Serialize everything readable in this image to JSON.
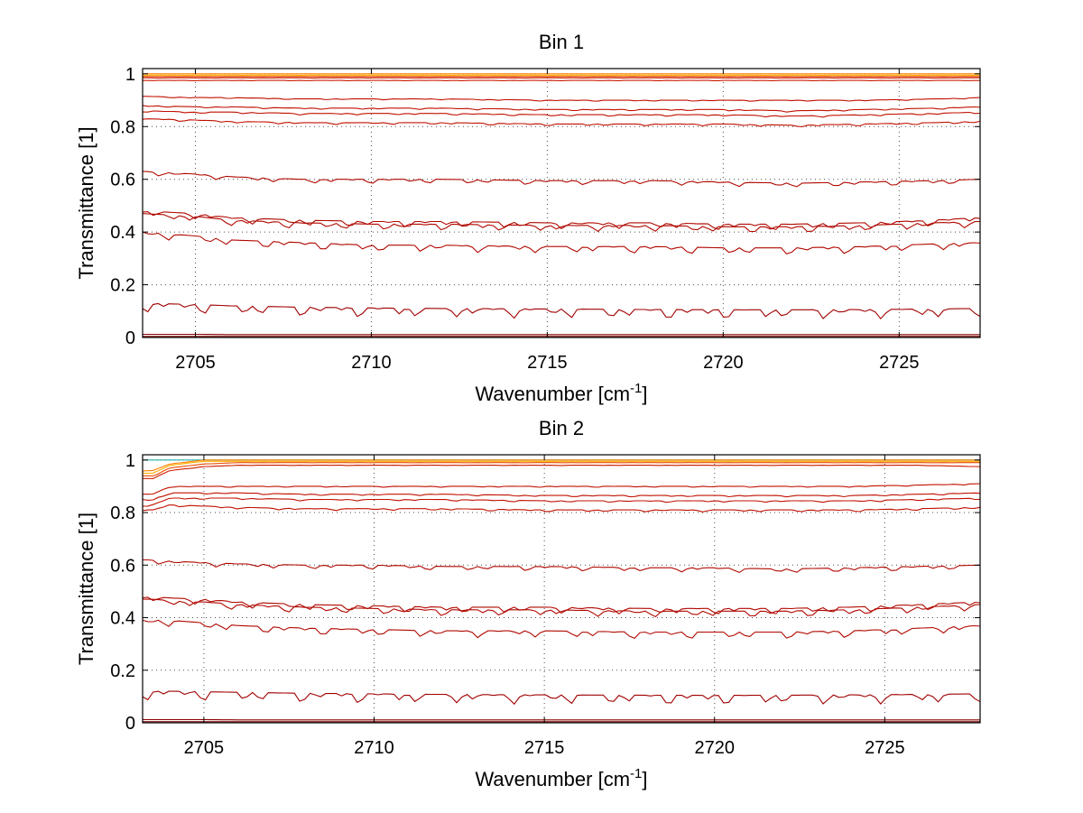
{
  "chart_data": [
    {
      "type": "line",
      "title": "Bin 1",
      "xlabel": "Wavenumber [cm",
      "xlabel_sup": "-1",
      "xlabel_tail": "]",
      "ylabel": "Transmittance [1]",
      "xlim": [
        2703.5,
        2727.3
      ],
      "ylim": [
        0,
        1.02
      ],
      "grid": true,
      "xticks": [
        2705,
        2710,
        2715,
        2720,
        2725
      ],
      "xtick_labels": [
        "2705",
        "2710",
        "2715",
        "2720",
        "2725"
      ],
      "yticks": [
        0,
        0.2,
        0.4,
        0.6,
        0.8,
        1
      ],
      "ytick_labels": [
        "0",
        "0.2",
        "0.4",
        "0.6",
        "0.8",
        "1"
      ],
      "x": [
        2703.5,
        2705,
        2706,
        2708,
        2710,
        2712,
        2715,
        2718,
        2720,
        2722,
        2724,
        2726,
        2727.3
      ],
      "series": [
        {
          "color": "#ff7f00",
          "values": [
            1.0,
            1.0,
            1.0,
            1.0,
            1.0,
            1.0,
            1.0,
            1.0,
            1.0,
            1.0,
            1.0,
            1.0,
            1.0
          ]
        },
        {
          "color": "#ffb000",
          "values": [
            0.995,
            0.995,
            0.995,
            0.995,
            0.995,
            0.995,
            0.995,
            0.995,
            0.995,
            0.995,
            0.995,
            0.995,
            0.995
          ]
        },
        {
          "color": "#e84a00",
          "values": [
            0.99,
            0.99,
            0.99,
            0.99,
            0.99,
            0.99,
            0.99,
            0.99,
            0.99,
            0.99,
            0.99,
            0.99,
            0.99
          ]
        },
        {
          "color": "#cc1a00",
          "values": [
            0.985,
            0.985,
            0.985,
            0.985,
            0.985,
            0.985,
            0.985,
            0.985,
            0.985,
            0.985,
            0.985,
            0.985,
            0.985
          ]
        },
        {
          "color": "#cc1a00",
          "values": [
            0.975,
            0.975,
            0.975,
            0.975,
            0.975,
            0.975,
            0.975,
            0.975,
            0.975,
            0.975,
            0.975,
            0.975,
            0.975
          ]
        },
        {
          "color": "#c01000",
          "values": [
            0.915,
            0.91,
            0.91,
            0.905,
            0.905,
            0.905,
            0.9,
            0.9,
            0.9,
            0.9,
            0.9,
            0.905,
            0.91
          ]
        },
        {
          "color": "#c01000",
          "values": [
            0.88,
            0.875,
            0.875,
            0.87,
            0.87,
            0.87,
            0.865,
            0.865,
            0.865,
            0.86,
            0.865,
            0.87,
            0.875
          ]
        },
        {
          "color": "#c01000",
          "values": [
            0.86,
            0.855,
            0.855,
            0.85,
            0.85,
            0.85,
            0.845,
            0.845,
            0.845,
            0.84,
            0.845,
            0.85,
            0.855
          ]
        },
        {
          "color": "#c01000",
          "values": [
            0.83,
            0.825,
            0.82,
            0.815,
            0.815,
            0.815,
            0.81,
            0.81,
            0.81,
            0.805,
            0.81,
            0.815,
            0.82
          ]
        },
        {
          "color": "#b00800",
          "values": [
            0.63,
            0.62,
            0.61,
            0.6,
            0.6,
            0.6,
            0.595,
            0.595,
            0.59,
            0.585,
            0.59,
            0.595,
            0.6
          ]
        },
        {
          "color": "#b00800",
          "values": [
            0.48,
            0.47,
            0.455,
            0.445,
            0.44,
            0.44,
            0.435,
            0.435,
            0.43,
            0.43,
            0.435,
            0.445,
            0.455
          ]
        },
        {
          "color": "#b00800",
          "values": [
            0.47,
            0.46,
            0.445,
            0.435,
            0.43,
            0.43,
            0.425,
            0.425,
            0.42,
            0.42,
            0.425,
            0.435,
            0.44
          ]
        },
        {
          "color": "#b00800",
          "values": [
            0.4,
            0.385,
            0.37,
            0.36,
            0.35,
            0.35,
            0.345,
            0.345,
            0.34,
            0.34,
            0.345,
            0.355,
            0.36
          ]
        },
        {
          "color": "#a00000",
          "values": [
            0.13,
            0.125,
            0.12,
            0.115,
            0.112,
            0.11,
            0.108,
            0.106,
            0.105,
            0.105,
            0.106,
            0.108,
            0.11
          ]
        },
        {
          "color": "#8b0000",
          "values": [
            0.012,
            0.012,
            0.011,
            0.011,
            0.011,
            0.011,
            0.011,
            0.011,
            0.011,
            0.011,
            0.011,
            0.011,
            0.011
          ]
        },
        {
          "color": "#7a0000",
          "values": [
            0.004,
            0.004,
            0.004,
            0.004,
            0.004,
            0.004,
            0.004,
            0.004,
            0.004,
            0.004,
            0.004,
            0.004,
            0.004
          ]
        }
      ]
    },
    {
      "type": "line",
      "title": "Bin 2",
      "xlabel": "Wavenumber [cm",
      "xlabel_sup": "-1",
      "xlabel_tail": "]",
      "ylabel": "Transmittance [1]",
      "xlim": [
        2703.2,
        2727.8
      ],
      "ylim": [
        0,
        1.02
      ],
      "grid": true,
      "xticks": [
        2705,
        2710,
        2715,
        2720,
        2725
      ],
      "xtick_labels": [
        "2705",
        "2710",
        "2715",
        "2720",
        "2725"
      ],
      "yticks": [
        0,
        0.2,
        0.4,
        0.6,
        0.8,
        1
      ],
      "ytick_labels": [
        "0",
        "0.2",
        "0.4",
        "0.6",
        "0.8",
        "1"
      ],
      "x": [
        2703.5,
        2704,
        2705,
        2706,
        2708,
        2710,
        2712,
        2715,
        2718,
        2720,
        2722,
        2724,
        2726,
        2727.8
      ],
      "series": [
        {
          "color": "#20b2aa",
          "values": [
            1.0,
            1.0,
            1.0,
            1.0,
            1.0,
            1.0,
            1.0,
            1.0,
            1.0,
            1.0,
            1.0,
            1.0,
            1.0,
            1.0
          ]
        },
        {
          "color": "#ff7f00",
          "values": [
            0.96,
            0.985,
            1.0,
            1.0,
            1.0,
            1.0,
            1.0,
            1.0,
            1.0,
            1.0,
            1.0,
            1.0,
            1.0,
            1.0
          ]
        },
        {
          "color": "#ffb000",
          "values": [
            0.95,
            0.98,
            0.995,
            0.995,
            0.995,
            0.995,
            0.995,
            0.995,
            0.995,
            0.995,
            0.995,
            0.995,
            0.995,
            0.995
          ]
        },
        {
          "color": "#e84a00",
          "values": [
            0.94,
            0.97,
            0.985,
            0.99,
            0.99,
            0.99,
            0.99,
            0.99,
            0.99,
            0.99,
            0.99,
            0.99,
            0.99,
            0.99
          ]
        },
        {
          "color": "#cc1a00",
          "values": [
            0.93,
            0.96,
            0.975,
            0.98,
            0.98,
            0.98,
            0.98,
            0.98,
            0.98,
            0.98,
            0.98,
            0.98,
            0.98,
            0.975
          ]
        },
        {
          "color": "#c01000",
          "values": [
            0.87,
            0.9,
            0.9,
            0.9,
            0.9,
            0.9,
            0.9,
            0.9,
            0.9,
            0.9,
            0.9,
            0.9,
            0.905,
            0.91
          ]
        },
        {
          "color": "#c01000",
          "values": [
            0.85,
            0.875,
            0.875,
            0.875,
            0.87,
            0.87,
            0.87,
            0.865,
            0.865,
            0.865,
            0.865,
            0.865,
            0.87,
            0.875
          ]
        },
        {
          "color": "#c01000",
          "values": [
            0.83,
            0.855,
            0.855,
            0.855,
            0.85,
            0.85,
            0.85,
            0.845,
            0.845,
            0.845,
            0.845,
            0.845,
            0.85,
            0.855
          ]
        },
        {
          "color": "#c01000",
          "values": [
            0.81,
            0.83,
            0.825,
            0.82,
            0.815,
            0.815,
            0.815,
            0.81,
            0.81,
            0.81,
            0.81,
            0.81,
            0.815,
            0.82
          ]
        },
        {
          "color": "#b00800",
          "values": [
            0.62,
            0.615,
            0.61,
            0.605,
            0.6,
            0.6,
            0.595,
            0.595,
            0.59,
            0.59,
            0.585,
            0.59,
            0.595,
            0.6
          ]
        },
        {
          "color": "#b00800",
          "values": [
            0.48,
            0.475,
            0.47,
            0.46,
            0.45,
            0.445,
            0.44,
            0.44,
            0.435,
            0.435,
            0.435,
            0.44,
            0.45,
            0.46
          ]
        },
        {
          "color": "#b00800",
          "values": [
            0.47,
            0.465,
            0.46,
            0.45,
            0.44,
            0.435,
            0.43,
            0.43,
            0.425,
            0.425,
            0.425,
            0.43,
            0.44,
            0.45
          ]
        },
        {
          "color": "#b00800",
          "values": [
            0.39,
            0.39,
            0.38,
            0.37,
            0.36,
            0.355,
            0.35,
            0.35,
            0.345,
            0.345,
            0.345,
            0.35,
            0.36,
            0.37
          ]
        },
        {
          "color": "#a00000",
          "values": [
            0.12,
            0.12,
            0.118,
            0.116,
            0.112,
            0.11,
            0.108,
            0.106,
            0.105,
            0.104,
            0.105,
            0.106,
            0.108,
            0.11
          ]
        },
        {
          "color": "#8b0000",
          "values": [
            0.012,
            0.012,
            0.012,
            0.011,
            0.011,
            0.011,
            0.011,
            0.011,
            0.011,
            0.011,
            0.011,
            0.011,
            0.011,
            0.011
          ]
        },
        {
          "color": "#7a0000",
          "values": [
            0.004,
            0.004,
            0.004,
            0.004,
            0.004,
            0.004,
            0.004,
            0.004,
            0.004,
            0.004,
            0.004,
            0.004,
            0.004,
            0.004
          ]
        }
      ]
    }
  ]
}
